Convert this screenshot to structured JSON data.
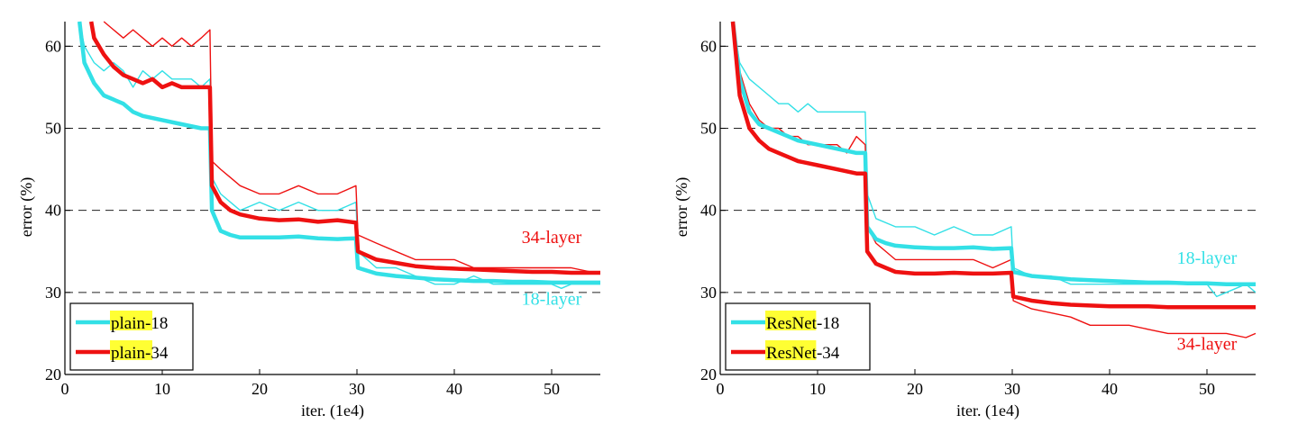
{
  "colors": {
    "cyan": "#33e0e6",
    "red": "#ee1111",
    "highlight": "#ffff33",
    "grid": "#222222"
  },
  "chart_data": [
    {
      "type": "line",
      "xlabel": "iter. (1e4)",
      "ylabel": "error (%)",
      "xlim": [
        0,
        55
      ],
      "ylim": [
        20,
        63
      ],
      "x_ticks": [
        0,
        10,
        20,
        30,
        40,
        50
      ],
      "y_ticks": [
        20,
        30,
        40,
        50,
        60
      ],
      "grid": "horizontal dashed at 30, 40, 50, 60",
      "legend_location": "lower-left",
      "legend": [
        {
          "highlight": "plain",
          "suffix": "-18",
          "color": "cyan"
        },
        {
          "highlight": "plain",
          "suffix": "-34",
          "color": "red"
        }
      ],
      "annotations": [
        {
          "text": "34-layer",
          "color": "red",
          "x": 50,
          "y": 36
        },
        {
          "text": "18-layer",
          "color": "cyan",
          "x": 50,
          "y": 28.5
        }
      ],
      "series": [
        {
          "name": "plain-18 train",
          "color": "cyan",
          "width": "thin",
          "x": [
            1.5,
            2,
            3,
            4,
            5,
            6,
            7,
            8,
            9,
            10,
            11,
            12,
            13,
            14,
            14.9,
            15.1,
            16,
            18,
            20,
            22,
            24,
            26,
            28,
            29.9,
            30.1,
            32,
            34,
            36,
            38,
            40,
            42,
            44,
            46,
            48,
            50,
            51,
            52,
            54,
            55
          ],
          "y": [
            63,
            60,
            58,
            57,
            58,
            57,
            55,
            57,
            56,
            57,
            56,
            56,
            56,
            55,
            56,
            44,
            42,
            40,
            41,
            40,
            41,
            40,
            40,
            41,
            35,
            33,
            33,
            32,
            31,
            31,
            32,
            31,
            31,
            31,
            31,
            30.5,
            31,
            31,
            31
          ]
        },
        {
          "name": "plain-34 train",
          "color": "red",
          "width": "thin",
          "x": [
            4,
            5,
            6,
            7,
            8,
            9,
            10,
            11,
            12,
            13,
            14,
            14.9,
            15.1,
            16,
            18,
            20,
            22,
            24,
            26,
            28,
            29.9,
            30.1,
            32,
            34,
            36,
            38,
            40,
            42,
            44,
            46,
            48,
            50,
            52,
            54,
            55
          ],
          "y": [
            63,
            62,
            61,
            62,
            61,
            60,
            61,
            60,
            61,
            60,
            61,
            62,
            46,
            45,
            43,
            42,
            42,
            43,
            42,
            42,
            43,
            37,
            36,
            35,
            34,
            34,
            34,
            33,
            33,
            33,
            33,
            33,
            33,
            32.5,
            32.5
          ]
        },
        {
          "name": "plain-18 val",
          "color": "cyan",
          "width": "thick",
          "x": [
            1.5,
            2,
            3,
            4,
            5,
            6,
            7,
            8,
            10,
            12,
            14,
            14.9,
            15.1,
            16,
            17,
            18,
            20,
            22,
            24,
            26,
            28,
            29.9,
            30.1,
            32,
            34,
            36,
            38,
            40,
            42,
            44,
            46,
            48,
            50,
            52,
            55
          ],
          "y": [
            63,
            58,
            55.5,
            54,
            53.5,
            53,
            52,
            51.5,
            51,
            50.5,
            50,
            50,
            40,
            37.5,
            37,
            36.7,
            36.7,
            36.7,
            36.8,
            36.6,
            36.5,
            36.6,
            33,
            32.3,
            32,
            31.8,
            31.6,
            31.5,
            31.4,
            31.4,
            31.3,
            31.3,
            31.2,
            31.2,
            31.2
          ]
        },
        {
          "name": "plain-34 val",
          "color": "red",
          "width": "thick",
          "x": [
            2.7,
            3,
            4,
            5,
            6,
            7,
            8,
            9,
            10,
            11,
            12,
            13,
            14,
            14.9,
            15.1,
            16,
            17,
            18,
            20,
            22,
            24,
            26,
            28,
            29.9,
            30.1,
            32,
            34,
            36,
            38,
            40,
            42,
            44,
            46,
            48,
            50,
            52,
            55
          ],
          "y": [
            63,
            61,
            59,
            57.5,
            56.5,
            56,
            55.5,
            56,
            55,
            55.5,
            55,
            55,
            55,
            55,
            43,
            41,
            40,
            39.5,
            39,
            38.8,
            38.9,
            38.6,
            38.8,
            38.5,
            35,
            34,
            33.6,
            33.2,
            33,
            32.9,
            32.8,
            32.7,
            32.6,
            32.5,
            32.5,
            32.4,
            32.4
          ]
        }
      ]
    },
    {
      "type": "line",
      "xlabel": "iter. (1e4)",
      "ylabel": "error (%)",
      "xlim": [
        0,
        55
      ],
      "ylim": [
        20,
        63
      ],
      "x_ticks": [
        0,
        10,
        20,
        30,
        40,
        50
      ],
      "y_ticks": [
        20,
        30,
        40,
        50,
        60
      ],
      "grid": "horizontal dashed at 30, 40, 50, 60",
      "legend_location": "lower-left",
      "legend": [
        {
          "highlight": "ResNet",
          "suffix": "-18",
          "color": "cyan"
        },
        {
          "highlight": "ResNet",
          "suffix": "-34",
          "color": "red"
        }
      ],
      "annotations": [
        {
          "text": "18-layer",
          "color": "cyan",
          "x": 50,
          "y": 33.5
        },
        {
          "text": "34-layer",
          "color": "red",
          "x": 50,
          "y": 23
        }
      ],
      "series": [
        {
          "name": "ResNet-18 train",
          "color": "cyan",
          "width": "thin",
          "x": [
            1.3,
            2,
            3,
            4,
            5,
            6,
            7,
            8,
            9,
            10,
            11,
            12,
            13,
            14,
            14.9,
            15.1,
            16,
            18,
            20,
            22,
            24,
            26,
            28,
            29.9,
            30.1,
            32,
            34,
            36,
            38,
            40,
            42,
            44,
            46,
            48,
            50,
            51,
            52,
            54,
            55
          ],
          "y": [
            63,
            58,
            56,
            55,
            54,
            53,
            53,
            52,
            53,
            52,
            52,
            52,
            52,
            52,
            52,
            42,
            39,
            38,
            38,
            37,
            38,
            37,
            37,
            38,
            33,
            32,
            32,
            31,
            31,
            31,
            31,
            31,
            31,
            31,
            31,
            29.5,
            30,
            31,
            30
          ]
        },
        {
          "name": "ResNet-34 train",
          "color": "red",
          "width": "thin",
          "x": [
            1.3,
            2,
            3,
            4,
            5,
            6,
            7,
            8,
            9,
            10,
            11,
            12,
            13,
            14,
            14.9,
            15.1,
            16,
            18,
            20,
            22,
            24,
            26,
            28,
            29.9,
            30.1,
            32,
            34,
            36,
            38,
            40,
            42,
            44,
            46,
            48,
            50,
            52,
            54,
            55
          ],
          "y": [
            63,
            57,
            53,
            51,
            50,
            50,
            49,
            49,
            48,
            48,
            48,
            48,
            47,
            49,
            48,
            38,
            36,
            34,
            34,
            34,
            34,
            34,
            33,
            34,
            29,
            28,
            27.5,
            27,
            26,
            26,
            26,
            25.5,
            25,
            25,
            25,
            25,
            24.5,
            25
          ]
        },
        {
          "name": "ResNet-18 val",
          "color": "cyan",
          "width": "thick",
          "x": [
            1.3,
            2,
            3,
            4,
            5,
            6,
            7,
            8,
            10,
            12,
            14,
            14.9,
            15.1,
            16,
            17,
            18,
            20,
            22,
            24,
            26,
            28,
            29.9,
            30.1,
            32,
            34,
            36,
            38,
            40,
            42,
            44,
            46,
            48,
            50,
            52,
            55
          ],
          "y": [
            63,
            56,
            52,
            50.5,
            50,
            49.5,
            49,
            48.5,
            48,
            47.5,
            47,
            47,
            38,
            36.5,
            36,
            35.7,
            35.5,
            35.4,
            35.4,
            35.5,
            35.3,
            35.4,
            32.5,
            32,
            31.8,
            31.6,
            31.5,
            31.4,
            31.3,
            31.2,
            31.2,
            31.1,
            31.1,
            31,
            31
          ]
        },
        {
          "name": "ResNet-34 val",
          "color": "red",
          "width": "thick",
          "x": [
            1.3,
            2,
            3,
            4,
            5,
            6,
            7,
            8,
            10,
            12,
            14,
            14.9,
            15.1,
            16,
            17,
            18,
            20,
            22,
            24,
            26,
            28,
            29.9,
            30.1,
            32,
            34,
            36,
            38,
            40,
            42,
            44,
            46,
            48,
            50,
            52,
            55
          ],
          "y": [
            63,
            54,
            50,
            48.5,
            47.5,
            47,
            46.5,
            46,
            45.5,
            45,
            44.5,
            44.5,
            35,
            33.5,
            33,
            32.5,
            32.3,
            32.3,
            32.4,
            32.3,
            32.3,
            32.4,
            29.5,
            29,
            28.7,
            28.5,
            28.4,
            28.3,
            28.3,
            28.3,
            28.2,
            28.2,
            28.2,
            28.2,
            28.2
          ]
        }
      ]
    }
  ]
}
